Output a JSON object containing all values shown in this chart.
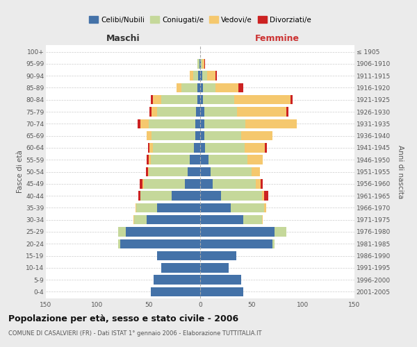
{
  "age_groups": [
    "0-4",
    "5-9",
    "10-14",
    "15-19",
    "20-24",
    "25-29",
    "30-34",
    "35-39",
    "40-44",
    "45-49",
    "50-54",
    "55-59",
    "60-64",
    "65-69",
    "70-74",
    "75-79",
    "80-84",
    "85-89",
    "90-94",
    "95-99",
    "100+"
  ],
  "birth_years": [
    "2001-2005",
    "1996-2000",
    "1991-1995",
    "1986-1990",
    "1981-1985",
    "1976-1980",
    "1971-1975",
    "1966-1970",
    "1961-1965",
    "1956-1960",
    "1951-1955",
    "1946-1950",
    "1941-1945",
    "1936-1940",
    "1931-1935",
    "1926-1930",
    "1921-1925",
    "1916-1920",
    "1911-1915",
    "1906-1910",
    "≤ 1905"
  ],
  "maschi": {
    "celibi": [
      48,
      45,
      38,
      42,
      78,
      72,
      52,
      42,
      28,
      15,
      12,
      10,
      6,
      5,
      5,
      4,
      3,
      3,
      2,
      1,
      0
    ],
    "coniugati": [
      0,
      0,
      0,
      0,
      2,
      8,
      12,
      20,
      30,
      40,
      38,
      38,
      40,
      42,
      45,
      38,
      35,
      15,
      5,
      2,
      0
    ],
    "vedovi": [
      0,
      0,
      0,
      0,
      0,
      0,
      1,
      1,
      0,
      1,
      1,
      2,
      3,
      5,
      8,
      5,
      8,
      5,
      3,
      0,
      0
    ],
    "divorziati": [
      0,
      0,
      0,
      0,
      0,
      0,
      0,
      0,
      2,
      3,
      2,
      2,
      2,
      0,
      3,
      2,
      2,
      0,
      0,
      0,
      0
    ]
  },
  "femmine": {
    "nubili": [
      42,
      40,
      28,
      35,
      70,
      72,
      42,
      30,
      20,
      12,
      10,
      8,
      5,
      4,
      4,
      4,
      3,
      3,
      2,
      1,
      0
    ],
    "coniugate": [
      0,
      0,
      0,
      0,
      2,
      12,
      18,
      32,
      40,
      42,
      40,
      38,
      38,
      36,
      40,
      32,
      30,
      12,
      5,
      1,
      0
    ],
    "vedove": [
      0,
      0,
      0,
      0,
      0,
      0,
      1,
      2,
      2,
      5,
      8,
      15,
      20,
      30,
      50,
      48,
      55,
      22,
      8,
      2,
      0
    ],
    "divorziate": [
      0,
      0,
      0,
      0,
      0,
      0,
      0,
      0,
      4,
      2,
      0,
      0,
      2,
      0,
      0,
      2,
      2,
      5,
      1,
      1,
      0
    ]
  },
  "colors": {
    "celibi": "#4472a8",
    "coniugati": "#c5d89a",
    "vedovi": "#f5c86e",
    "divorziati": "#cc2222"
  },
  "xlim": 150,
  "xticks": [
    -150,
    -100,
    -50,
    0,
    50,
    100,
    150
  ],
  "title": "Popolazione per età, sesso e stato civile - 2006",
  "subtitle": "COMUNE DI CASALVIERI (FR) - Dati ISTAT 1° gennaio 2006 - Elaborazione TUTTITALIA.IT",
  "ylabel_left": "Fasce di età",
  "ylabel_right": "Anni di nascita",
  "label_maschi": "Maschi",
  "label_femmine": "Femmine",
  "legend_labels": [
    "Celibi/Nubili",
    "Coniugati/e",
    "Vedovi/e",
    "Divorziati/e"
  ],
  "bg_color": "#ebebeb",
  "plot_bg_color": "#ffffff"
}
